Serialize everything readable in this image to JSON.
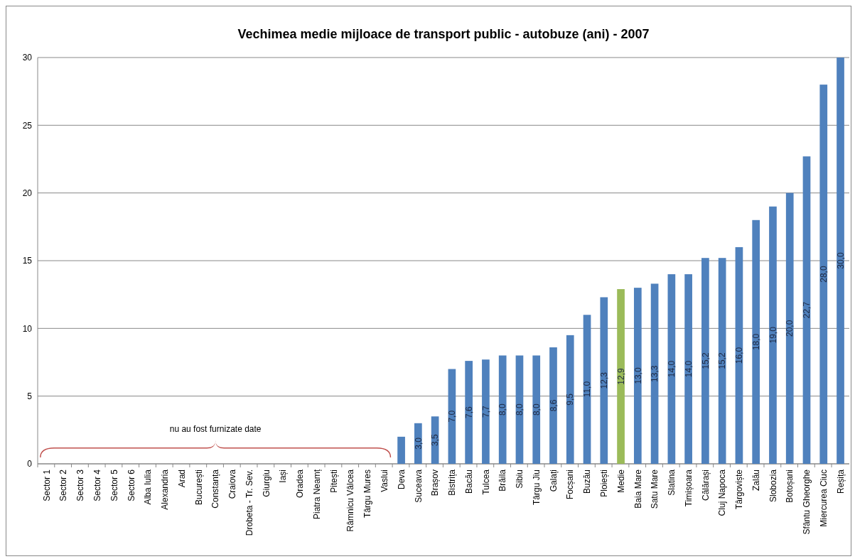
{
  "chart_data": {
    "type": "bar",
    "title": "Vechimea medie mijloace de transport public - autobuze (ani) - 2007",
    "categories": [
      "Sector 1",
      "Sector 2",
      "Sector 3",
      "Sector 4",
      "Sector 5",
      "Sector 6",
      "Alba Iulia",
      "Alexandria",
      "Arad",
      "București",
      "Constanța",
      "Craiova",
      "Drobeta - Tr. Sev.",
      "Giurgiu",
      "Iași",
      "Oradea",
      "Piatra Neamț",
      "Pitești",
      "Râmnicu Vâlcea",
      "Târgu Mures",
      "Vaslui",
      "Deva",
      "Suceava",
      "Brașov",
      "Bistrița",
      "Bacău",
      "Tulcea",
      "Brăila",
      "Sibiu",
      "Târgu Jiu",
      "Galați",
      "Focșani",
      "Buzău",
      "Ploiești",
      "Medie",
      "Baia Mare",
      "Satu Mare",
      "Slatina",
      "Timișoara",
      "Călărași",
      "Cluj Napoca",
      "Târgoviște",
      "Zalău",
      "Slobozia",
      "Botoșani",
      "Sfântu Gheorghe",
      "Miercurea Ciuc",
      "Reșița"
    ],
    "values": [
      null,
      null,
      null,
      null,
      null,
      null,
      null,
      null,
      null,
      null,
      null,
      null,
      null,
      null,
      null,
      null,
      null,
      null,
      null,
      null,
      null,
      2,
      3.0,
      3.5,
      7.0,
      7.6,
      7.7,
      8.0,
      8.0,
      8.0,
      8.6,
      9.5,
      11.0,
      12.3,
      12.9,
      13.0,
      13.3,
      14.0,
      14.0,
      15.2,
      15.2,
      16.0,
      18.0,
      19.0,
      20.0,
      22.7,
      28.0,
      30.0
    ],
    "value_labels": [
      null,
      null,
      null,
      null,
      null,
      null,
      null,
      null,
      null,
      null,
      null,
      null,
      null,
      null,
      null,
      null,
      null,
      null,
      null,
      null,
      null,
      null,
      "3,0",
      "3,5",
      "7,0",
      "7,6",
      "7,7",
      "8,0",
      "8,0",
      "8,0",
      "8,6",
      "9,5",
      "11,0",
      "12,3",
      "12,9",
      "13,0",
      "13,3",
      "14,0",
      "14,0",
      "15,2",
      "15,2",
      "16,0",
      "18,0",
      "19,0",
      "20,0",
      "22,7",
      "28,0",
      "30,0"
    ],
    "colors": [
      null,
      null,
      null,
      null,
      null,
      null,
      null,
      null,
      null,
      null,
      null,
      null,
      null,
      null,
      null,
      null,
      null,
      null,
      null,
      null,
      null,
      "#4f81bd",
      "#4f81bd",
      "#4f81bd",
      "#4f81bd",
      "#4f81bd",
      "#4f81bd",
      "#4f81bd",
      "#4f81bd",
      "#4f81bd",
      "#4f81bd",
      "#4f81bd",
      "#4f81bd",
      "#4f81bd",
      "#9bbb59",
      "#4f81bd",
      "#4f81bd",
      "#4f81bd",
      "#4f81bd",
      "#4f81bd",
      "#4f81bd",
      "#4f81bd",
      "#4f81bd",
      "#4f81bd",
      "#4f81bd",
      "#4f81bd",
      "#4f81bd",
      "#4f81bd"
    ],
    "ylim": [
      0,
      30
    ],
    "yticks": [
      0,
      5,
      10,
      15,
      20,
      25,
      30
    ],
    "grid": true,
    "annotations": [
      "nu au fost furnizate date"
    ]
  }
}
